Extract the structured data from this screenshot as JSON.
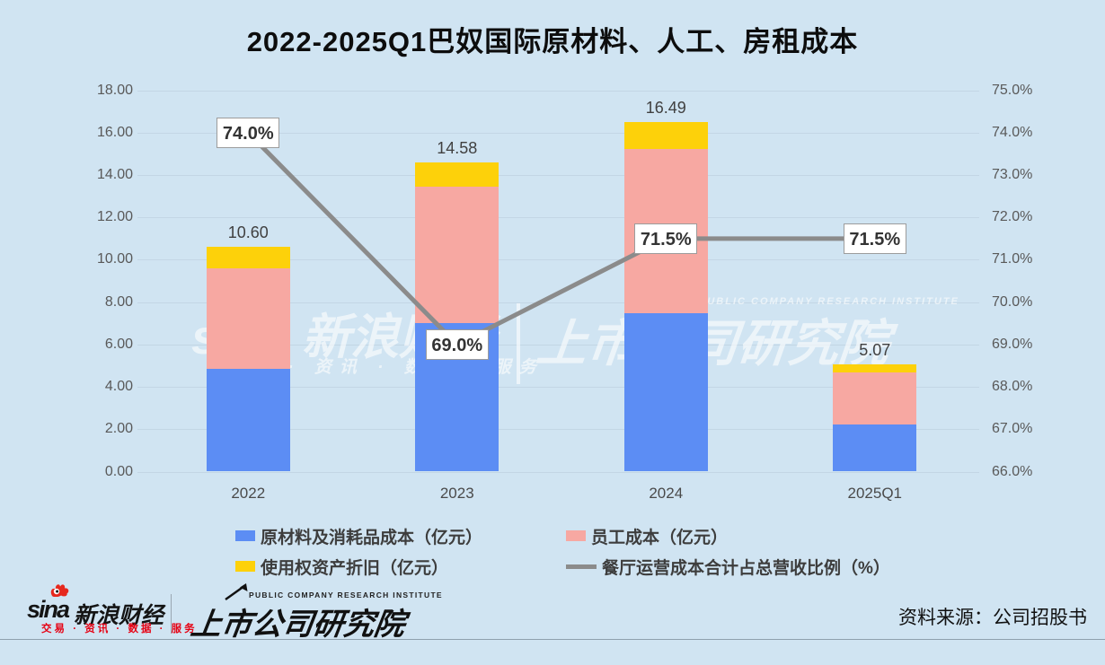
{
  "title": "2022-2025Q1巴奴国际原材料、人工、房租成本",
  "colors": {
    "background": "#D0E4F2",
    "bar_blue": "#5C8DF4",
    "bar_pink": "#F7A8A2",
    "bar_yellow": "#FDD10A",
    "line_gray": "#8B8B8B"
  },
  "chart_data": {
    "type": "bar",
    "subtype": "stacked-bars-with-percentage-line",
    "title": "2022-2025Q1巴奴国际原材料、人工、房租成本",
    "categories": [
      "2022",
      "2023",
      "2024",
      "2025Q1"
    ],
    "series": [
      {
        "key": "raw-materials",
        "name": "原材料及消耗品成本（亿元）",
        "type": "bar",
        "axis": "left",
        "color": "#5C8DF4",
        "values": [
          4.83,
          7.03,
          7.48,
          2.23
        ]
      },
      {
        "key": "staff-cost",
        "name": "员工成本（亿元）",
        "type": "bar",
        "axis": "left",
        "color": "#F7A8A2",
        "values": [
          4.75,
          6.41,
          7.75,
          2.46
        ]
      },
      {
        "key": "right-of-use-depreciation",
        "name": "使用权资产折旧（亿元）",
        "type": "bar",
        "axis": "left",
        "color": "#FDD10A",
        "values": [
          1.02,
          1.14,
          1.26,
          0.38
        ]
      },
      {
        "key": "cost-ratio",
        "name": "餐厅运营成本合计占总营收比例（%）",
        "type": "line",
        "axis": "right",
        "color": "#8B8B8B",
        "values": [
          74.0,
          69.0,
          71.5,
          71.5
        ]
      }
    ],
    "bar_totals": [
      "10.60",
      "14.58",
      "16.49",
      "5.07"
    ],
    "ratio_labels": [
      "74.0%",
      "69.0%",
      "71.5%",
      "71.5%"
    ],
    "left_axis": {
      "min": 0,
      "max": 18,
      "ticks": [
        "18.00",
        "16.00",
        "14.00",
        "12.00",
        "10.00",
        "8.00",
        "6.00",
        "4.00",
        "2.00",
        "0.00"
      ]
    },
    "right_axis": {
      "min": 66,
      "max": 75,
      "ticks": [
        "75.0%",
        "74.0%",
        "73.0%",
        "72.0%",
        "71.0%",
        "70.0%",
        "69.0%",
        "68.0%",
        "67.0%",
        "66.0%"
      ]
    },
    "grid": true,
    "legend_position": "bottom"
  },
  "watermark": {
    "brand": "sina 新浪财经",
    "tagline": "交易 · 资讯 · 数据 · 服务",
    "institute_en": "PUBLIC COMPANY RESEARCH INSTITUTE",
    "institute": "上市公司研究院"
  },
  "footer": {
    "sina": "sina",
    "sina_cn": "新浪财经",
    "tagline": "交易 · 资讯 · 数据 · 服务",
    "institute_en": "PUBLIC COMPANY RESEARCH INSTITUTE",
    "institute": "上市公司研究院",
    "source": "资料来源：公司招股书"
  }
}
